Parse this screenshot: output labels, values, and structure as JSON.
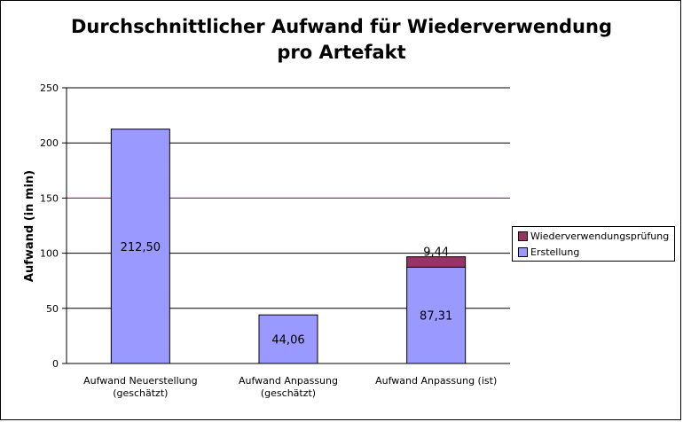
{
  "chart_data": {
    "type": "bar",
    "stacked": true,
    "title_line1": "Durchschnittlicher Aufwand für Wiederverwendung",
    "title_line2": "pro Artefakt",
    "ylabel": "Aufwand (in min)",
    "xlabel": "",
    "ylim": [
      0,
      250
    ],
    "yticks": [
      "0",
      "50",
      "100",
      "150",
      "200",
      "250"
    ],
    "grid": true,
    "legend_position": "right",
    "categories": [
      [
        "Aufwand Neuerstellung",
        "(geschätzt)"
      ],
      [
        "Aufwand Anpassung",
        "(geschätzt)"
      ],
      [
        "Aufwand Anpassung (ist)"
      ]
    ],
    "series": [
      {
        "name": "Erstellung",
        "color": "#9999ff",
        "values": [
          212.5,
          44.06,
          87.31
        ],
        "labels": [
          "212,50",
          "44,06",
          "87,31"
        ]
      },
      {
        "name": "Wiederverwendungsprüfung",
        "color": "#993366",
        "values": [
          0,
          0,
          9.44
        ],
        "labels": [
          "",
          "",
          "9,44"
        ]
      }
    ]
  }
}
